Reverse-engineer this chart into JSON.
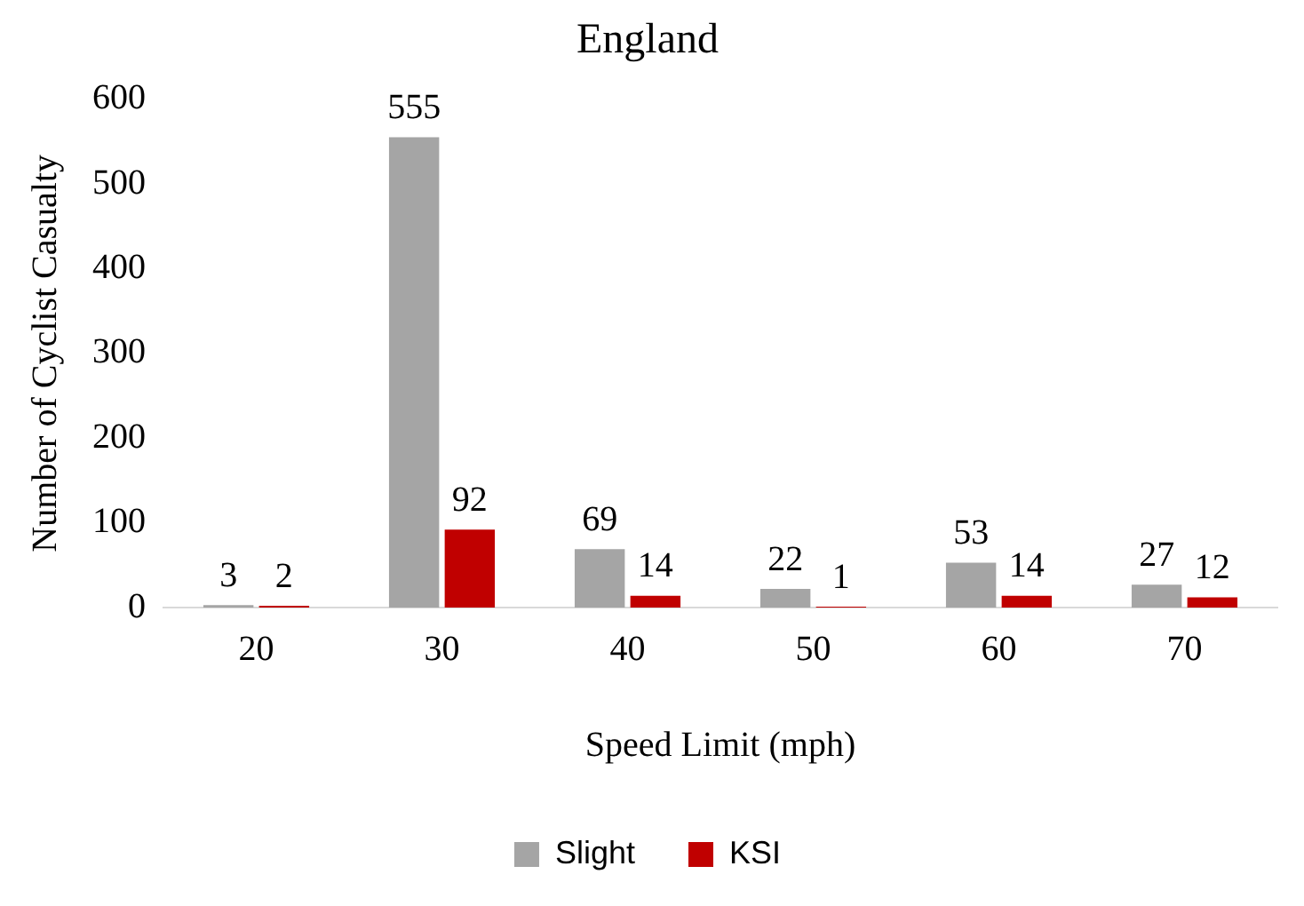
{
  "chart_data": {
    "type": "bar",
    "title": "England",
    "xlabel": "Speed Limit (mph)",
    "ylabel": "Number of Cyclist Casualty",
    "categories": [
      "20",
      "30",
      "40",
      "50",
      "60",
      "70"
    ],
    "series": [
      {
        "name": "Slight",
        "color": "#a5a5a5",
        "values": [
          3,
          555,
          69,
          22,
          53,
          27
        ]
      },
      {
        "name": "KSI",
        "color": "#c00000",
        "values": [
          2,
          92,
          14,
          1,
          14,
          12
        ]
      }
    ],
    "ylim": [
      0,
      600
    ],
    "yticks": [
      0,
      100,
      200,
      300,
      400,
      500,
      600
    ],
    "grid": false,
    "legend": "bottom",
    "data_labels": true
  }
}
